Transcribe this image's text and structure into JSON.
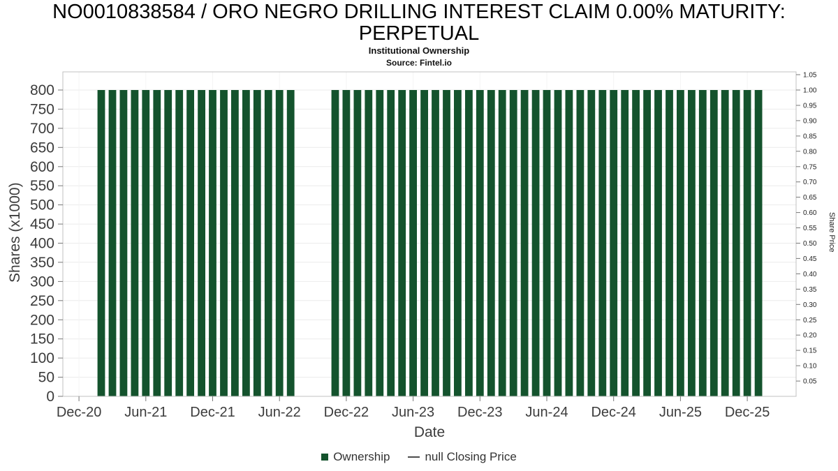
{
  "header": {
    "title": "NO0010838584 / ORO NEGRO DRILLING INTEREST CLAIM 0.00% MATURITY: PERPETUAL",
    "subtitle": "Institutional Ownership",
    "source": "Source: Fintel.io"
  },
  "chart_data": {
    "type": "bar",
    "title": "NO0010838584 / ORO NEGRO DRILLING INTEREST CLAIM 0.00% MATURITY: PERPETUAL",
    "subtitle": "Institutional Ownership",
    "source": "Source: Fintel.io",
    "xlabel": "Date",
    "ylabel_left": "Shares (x1000)",
    "ylabel_right": "Share Price",
    "bar_color": "#14532d",
    "grid": true,
    "legend_position": "bottom",
    "left_axis": {
      "min": 0,
      "max": 847,
      "ticks": [
        0,
        50,
        100,
        150,
        200,
        250,
        300,
        350,
        400,
        450,
        500,
        550,
        600,
        650,
        700,
        750,
        800
      ]
    },
    "right_axis": {
      "min": 0,
      "max": 1.06,
      "ticks": [
        "0.05",
        "0.10",
        "0.15",
        "0.20",
        "0.25",
        "0.30",
        "0.35",
        "0.40",
        "0.45",
        "0.50",
        "0.55",
        "0.60",
        "0.65",
        "0.70",
        "0.75",
        "0.80",
        "0.85",
        "0.90",
        "0.95",
        "1.00",
        "1.05"
      ]
    },
    "x_ticks": [
      "Dec-20",
      "Jun-21",
      "Dec-21",
      "Jun-22",
      "Dec-22",
      "Jun-23",
      "Dec-23",
      "Jun-24",
      "Dec-24",
      "Jun-25",
      "Dec-25"
    ],
    "categories": [
      "Feb-21",
      "Mar-21",
      "Apr-21",
      "May-21",
      "Jun-21",
      "Jul-21",
      "Aug-21",
      "Sep-21",
      "Oct-21",
      "Nov-21",
      "Dec-21",
      "Jan-22",
      "Feb-22",
      "Mar-22",
      "Apr-22",
      "May-22",
      "Jun-22",
      "Jul-22",
      "Nov-22",
      "Dec-22",
      "Jan-23",
      "Feb-23",
      "Mar-23",
      "Apr-23",
      "May-23",
      "Jun-23",
      "Jul-23",
      "Aug-23",
      "Sep-23",
      "Oct-23",
      "Nov-23",
      "Dec-23",
      "Jan-24",
      "Feb-24",
      "Mar-24",
      "Apr-24",
      "May-24",
      "Jun-24",
      "Jul-24",
      "Aug-24",
      "Sep-24",
      "Oct-24",
      "Nov-24",
      "Dec-24",
      "Jan-25",
      "Feb-25",
      "Mar-25",
      "Apr-25",
      "May-25",
      "Jun-25",
      "Jul-25",
      "Aug-25",
      "Sep-25",
      "Oct-25",
      "Nov-25",
      "Dec-25",
      "Jan-26"
    ],
    "values": [
      800,
      800,
      800,
      800,
      800,
      800,
      800,
      800,
      800,
      800,
      800,
      800,
      800,
      800,
      800,
      800,
      800,
      800,
      800,
      800,
      800,
      800,
      800,
      800,
      800,
      800,
      800,
      800,
      800,
      800,
      800,
      800,
      800,
      800,
      800,
      800,
      800,
      800,
      800,
      800,
      800,
      800,
      800,
      800,
      800,
      800,
      800,
      800,
      800,
      800,
      800,
      800,
      800,
      800,
      800,
      800,
      800
    ],
    "legend": [
      "Ownership",
      "null Closing Price"
    ]
  }
}
